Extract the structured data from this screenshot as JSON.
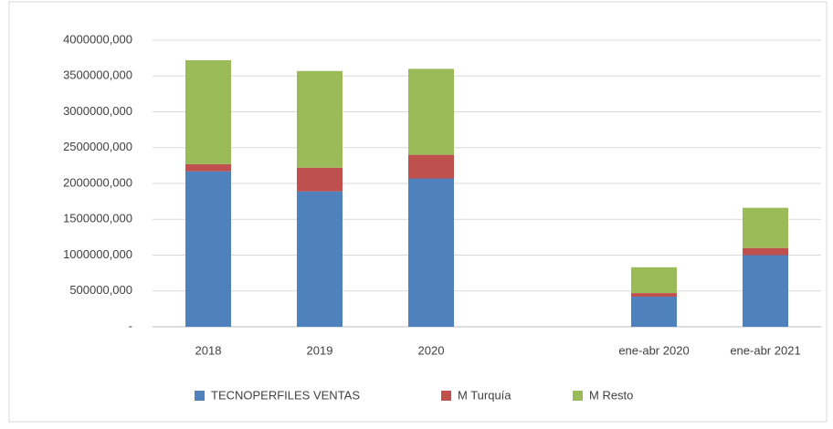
{
  "chart_data": {
    "type": "stacked_bar",
    "categories": [
      "2018",
      "2019",
      "2020",
      null,
      "ene-abr 2020",
      "ene-abr 2021"
    ],
    "series": [
      {
        "name": "TECNOPERFILES VENTAS",
        "color": "#4f81bd",
        "values": [
          2170000,
          1890000,
          2070000,
          null,
          420000,
          1000000
        ]
      },
      {
        "name": "M Turquía",
        "color": "#c0504d",
        "values": [
          100000,
          330000,
          330000,
          null,
          50000,
          100000
        ]
      },
      {
        "name": "M Resto",
        "color": "#9bbb59",
        "values": [
          1450000,
          1350000,
          1200000,
          null,
          360000,
          560000
        ]
      }
    ],
    "ylim": [
      0,
      4000000
    ],
    "yticks": [
      {
        "value": 0,
        "label": "-"
      },
      {
        "value": 500000,
        "label": "500000,000"
      },
      {
        "value": 1000000,
        "label": "1000000,000"
      },
      {
        "value": 1500000,
        "label": "1500000,000"
      },
      {
        "value": 2000000,
        "label": "2000000,000"
      },
      {
        "value": 2500000,
        "label": "2500000,000"
      },
      {
        "value": 3000000,
        "label": "3000000,000"
      },
      {
        "value": 3500000,
        "label": "3500000,000"
      },
      {
        "value": 4000000,
        "label": "4000000,000"
      }
    ],
    "grid": true,
    "legend": "bottom"
  }
}
